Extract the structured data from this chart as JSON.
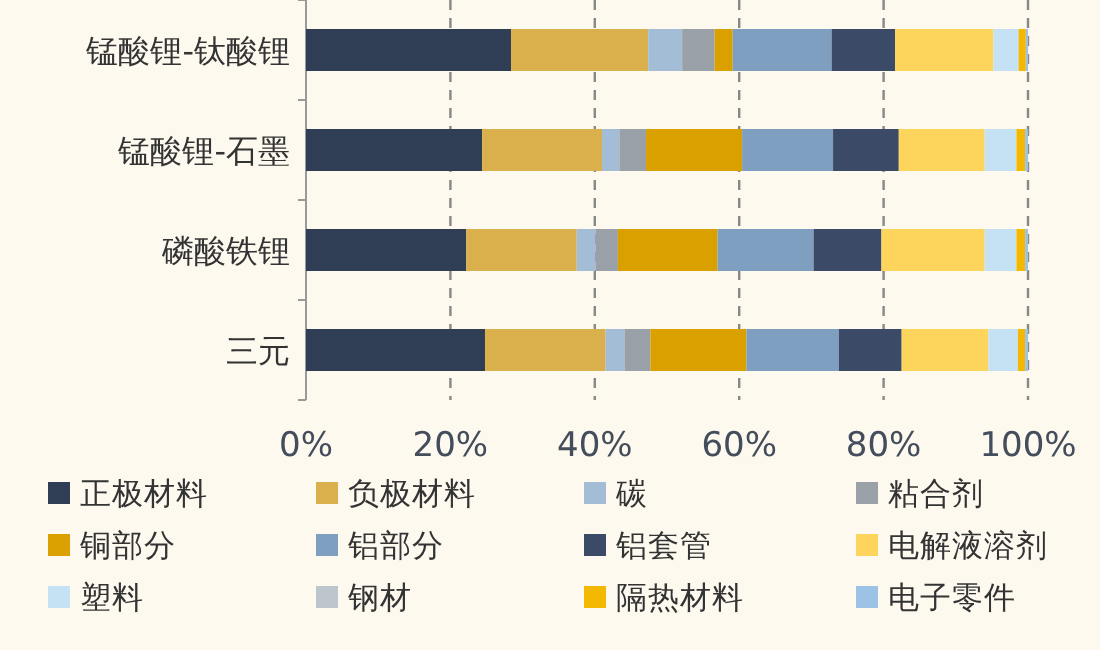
{
  "chart_data": {
    "type": "bar",
    "orientation": "horizontal",
    "stacked": true,
    "grid": "x",
    "legend": "bottom",
    "categories": [
      "锰酸锂-钛酸锂",
      "锰酸锂-石墨",
      "磷酸铁锂",
      "三元"
    ],
    "xlim": [
      0,
      100
    ],
    "xticks": [
      {
        "value": 0,
        "label": "0%"
      },
      {
        "value": 20,
        "label": "20%"
      },
      {
        "value": 40,
        "label": "40%"
      },
      {
        "value": 60,
        "label": "60%"
      },
      {
        "value": 80,
        "label": "80%"
      },
      {
        "value": 100,
        "label": "100%"
      }
    ],
    "series": [
      {
        "name": "正极材料",
        "color": "#2f3e55",
        "values": [
          28.4,
          24.4,
          22.2,
          24.8
        ]
      },
      {
        "name": "负极材料",
        "color": "#d9b04c",
        "values": [
          19.0,
          16.6,
          15.3,
          16.7
        ]
      },
      {
        "name": "碳",
        "color": "#a3bdd6",
        "values": [
          4.7,
          2.4,
          2.6,
          2.6
        ]
      },
      {
        "name": "粘合剂",
        "color": "#9aa0a8",
        "values": [
          4.5,
          3.7,
          3.1,
          3.6
        ]
      },
      {
        "name": "铜部分",
        "color": "#d9a000",
        "values": [
          2.5,
          13.3,
          13.8,
          13.3
        ]
      },
      {
        "name": "铝部分",
        "color": "#7f9fc0",
        "values": [
          13.7,
          12.6,
          13.3,
          12.8
        ]
      },
      {
        "name": "铝套管",
        "color": "#3b4a66",
        "values": [
          8.8,
          9.1,
          9.4,
          8.7
        ]
      },
      {
        "name": "电解液溶剂",
        "color": "#fdd55c",
        "values": [
          13.6,
          11.9,
          14.3,
          12.0
        ]
      },
      {
        "name": "塑料",
        "color": "#c5e2f5",
        "values": [
          3.5,
          4.4,
          4.4,
          4.1
        ]
      },
      {
        "name": "钢材",
        "color": "#bcc4cc",
        "values": [
          0,
          0,
          0,
          0
        ]
      },
      {
        "name": "隔热材料",
        "color": "#f5b800",
        "values": [
          1.0,
          1.2,
          1.2,
          1.0
        ]
      },
      {
        "name": "电子零件",
        "color": "#9cc2e5",
        "values": [
          0.3,
          0.4,
          0.4,
          0.4
        ]
      }
    ]
  }
}
